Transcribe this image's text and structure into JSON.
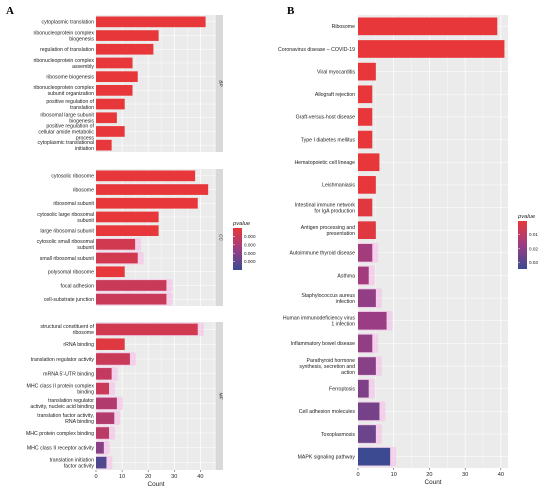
{
  "colors": {
    "panel_bg": "#ebebeb",
    "grid": "#ffffff",
    "strip_bg": "#d9d9d9",
    "bar_high": "#e8373a",
    "bar_mid": "#9b3d84",
    "bar_low": "#3b4a91",
    "glow": "#f9b9ea"
  },
  "chart_data": [
    {
      "panel": "A",
      "type": "bar",
      "orientation": "horizontal",
      "xlabel": "Count",
      "xlim": [
        0,
        46
      ],
      "xticks": [
        0,
        10,
        20,
        30,
        40
      ],
      "legend": {
        "title": "pvalue",
        "placement": "right",
        "ticks": [
          "0.000",
          "0.000",
          "0.000",
          "0.000"
        ]
      },
      "facets": [
        {
          "strip": "BP",
          "categories": [
            "cytoplasmic translation",
            "ribonucleoprotein complex biogenesis",
            "regulation of translation",
            "ribonucleoprotein complex assembly",
            "ribosome biogenesis",
            "ribonucleoprotein complex subunit organization",
            "positive regulation of translation",
            "ribosomal large subunit biogenesis",
            "positive regulation of cellular amide metabolic process",
            "cytoplasmic translational initiation"
          ],
          "display_labels": [
            [
              "cytoplasmic translation"
            ],
            [
              "ribonucleoprotein complex",
              "biogenesis"
            ],
            [
              "regulation of translation"
            ],
            [
              "ribonucleoprotein complex",
              "assembly"
            ],
            [
              "ribosome biogenesis"
            ],
            [
              "ribonucleoprotein complex",
              "subunit organization"
            ],
            [
              "positive regulation of",
              "translation"
            ],
            [
              "ribosomal large subunit",
              "biogenesis"
            ],
            [
              "positive regulation of",
              "cellular amide metabolic",
              "process"
            ],
            [
              "cytoplasmic translational",
              "initiation"
            ]
          ],
          "values": [
            42,
            24,
            22,
            14,
            16,
            14,
            11,
            8,
            11,
            6
          ],
          "pvalue_level": [
            0,
            0,
            0,
            0,
            0,
            0,
            0,
            0,
            0,
            0
          ]
        },
        {
          "strip": "CC",
          "categories": [
            "cytosolic ribosome",
            "ribosome",
            "ribosomal subunit",
            "cytosolic large ribosomal subunit",
            "large ribosomal subunit",
            "cytosolic small ribosomal subunit",
            "small ribosomal subunit",
            "polysomal ribosome",
            "focal adhesion",
            "cell-substrate junction"
          ],
          "display_labels": [
            [
              "cytosolic ribosome"
            ],
            [
              "ribosome"
            ],
            [
              "ribosomal subunit"
            ],
            [
              "cytosolic large ribosomal",
              "subunit"
            ],
            [
              "large ribosomal subunit"
            ],
            [
              "cytosolic small ribosomal",
              "subunit"
            ],
            [
              "small ribosomal subunit"
            ],
            [
              "polysomal ribosome"
            ],
            [
              "focal adhesion"
            ],
            [
              "cell-substrate junction"
            ]
          ],
          "values": [
            38,
            43,
            39,
            24,
            24,
            15,
            16,
            11,
            27,
            27
          ],
          "pvalue_level": [
            0,
            0,
            0,
            0,
            0,
            0.15,
            0.15,
            0,
            0.2,
            0.2
          ]
        },
        {
          "strip": "MF",
          "categories": [
            "structural constituent of ribosome",
            "rRNA binding",
            "translation regulator activity",
            "mRNA 5'-UTR binding",
            "MHC class II protein complex binding",
            "translation regulator activity, nucleic acid binding",
            "translation factor activity, RNA binding",
            "MHC protein complex binding",
            "MHC class II receptor activity",
            "translation initiation factor activity"
          ],
          "display_labels": [
            [
              "structural constituent of",
              "ribosome"
            ],
            [
              "rRNA binding"
            ],
            [
              "translation regulator activity"
            ],
            [
              "mRNA 5'-UTR binding"
            ],
            [
              "MHC class II protein complex",
              "binding"
            ],
            [
              "translation regulator",
              "activity, nucleic acid binding"
            ],
            [
              "translation factor activity,",
              "RNA binding"
            ],
            [
              "MHC protein complex binding"
            ],
            [
              "MHC class II receptor activity"
            ],
            [
              "translation initiation",
              "factor activity"
            ]
          ],
          "values": [
            39,
            11,
            13,
            6,
            5,
            8,
            7,
            5,
            3,
            4
          ],
          "pvalue_level": [
            0.15,
            0.05,
            0.2,
            0.25,
            0.2,
            0.35,
            0.35,
            0.3,
            0.6,
            0.9
          ]
        }
      ]
    },
    {
      "panel": "B",
      "type": "bar",
      "orientation": "horizontal",
      "xlabel": "Count",
      "xlim": [
        0,
        42
      ],
      "xticks": [
        0,
        10,
        20,
        30,
        40
      ],
      "legend": {
        "title": "pvalue",
        "placement": "right",
        "ticks": [
          "0.01",
          "0.02",
          "0.03"
        ]
      },
      "categories": [
        "Ribosome",
        "Coronavirus disease - COVID-19",
        "Viral myocarditis",
        "Allograft rejection",
        "Graft-versus-host disease",
        "Type I diabetes mellitus",
        "Hematopoietic cell lineage",
        "Leishmaniasis",
        "Intestinal immune network for IgA production",
        "Antigen processing and presentation",
        "Autoimmune thyroid disease",
        "Asthma",
        "Staphylococcus aureus infection",
        "Human immunodeficiency virus 1 infection",
        "Inflammatory bowel disease",
        "Parathyroid hormone synthesis, secretion and action",
        "Ferroptosis",
        "Cell adhesion molecules",
        "Toxoplasmosis",
        "MAPK signaling pathway"
      ],
      "display_labels": [
        [
          "Ribosome"
        ],
        [
          "Coronavirus disease – COVID-19"
        ],
        [
          "Viral myocarditis"
        ],
        [
          "Allograft rejection"
        ],
        [
          "Graft-versus-host disease"
        ],
        [
          "Type I diabetes mellitus"
        ],
        [
          "Hematopoietic cell lineage"
        ],
        [
          "Leishmaniasis"
        ],
        [
          "Intestinal immune network",
          "for IgA production"
        ],
        [
          "Antigen processing and",
          "presentation"
        ],
        [
          "Autoimmune thyroid disease"
        ],
        [
          "Asthma"
        ],
        [
          "Staphylococcus aureus",
          "infection"
        ],
        [
          "Human immunodeficiency virus",
          "1 infection"
        ],
        [
          "Inflammatory bowel disease"
        ],
        [
          "Parathyroid hormone",
          "synthesis, secretion and",
          "action"
        ],
        [
          "Ferroptosis"
        ],
        [
          "Cell adhesion molecules"
        ],
        [
          "Toxoplasmosis"
        ],
        [
          "MAPK signaling pathway"
        ]
      ],
      "values": [
        39,
        41,
        5,
        4,
        4,
        4,
        6,
        5,
        4,
        5,
        4,
        3,
        5,
        8,
        4,
        5,
        3,
        6,
        5,
        9
      ],
      "pvalue_level": [
        0,
        0,
        0,
        0,
        0,
        0,
        0,
        0,
        0.05,
        0.05,
        0.45,
        0.45,
        0.55,
        0.5,
        0.55,
        0.6,
        0.65,
        0.7,
        0.75,
        1.0
      ]
    }
  ]
}
